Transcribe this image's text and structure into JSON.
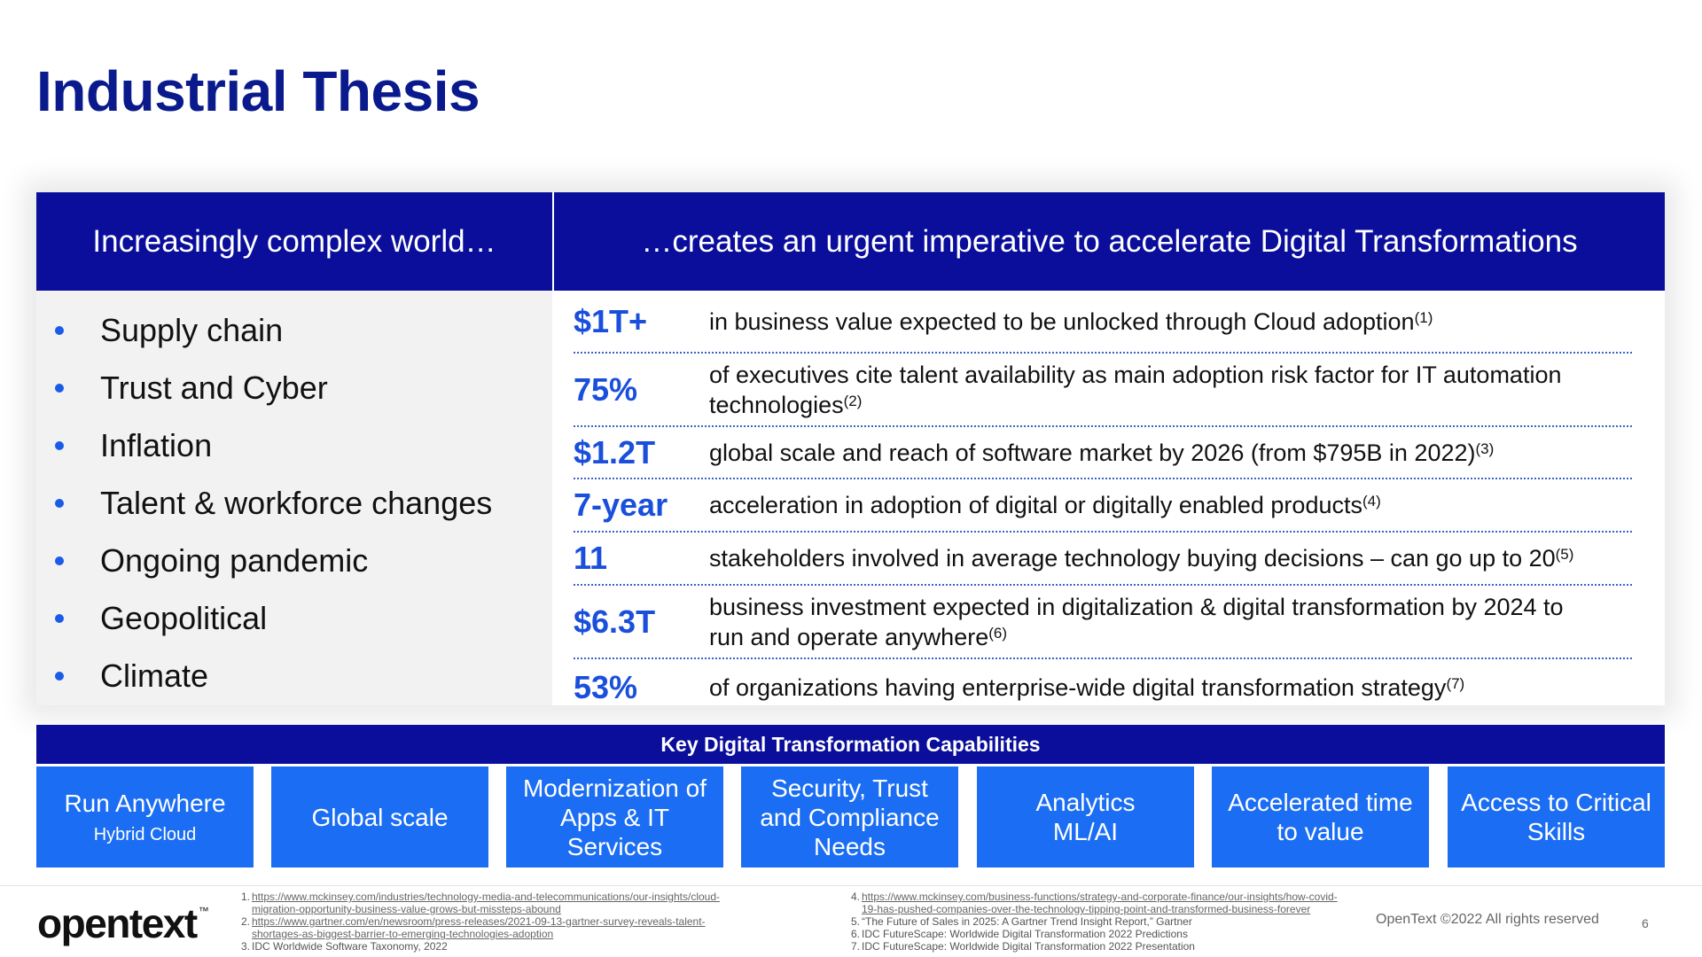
{
  "title": "Industrial Thesis",
  "left_header": "Increasingly complex world…",
  "right_header": "…creates an urgent imperative to accelerate Digital Transformations",
  "challenges": [
    "Supply chain",
    "Trust and Cyber",
    "Inflation",
    "Talent & workforce changes",
    "Ongoing pandemic",
    "Geopolitical",
    "Climate"
  ],
  "stats": [
    {
      "value": "$1T+",
      "lines": [
        "in business value expected to be unlocked through Cloud adoption"
      ],
      "ref": "(1)"
    },
    {
      "value": "75%",
      "lines": [
        "of executives cite talent availability as main adoption risk factor for IT automation",
        "technologies"
      ],
      "ref": "(2)"
    },
    {
      "value": "$1.2T",
      "lines": [
        "global scale and reach of software market by 2026 (from $795B in 2022)"
      ],
      "ref": "(3)"
    },
    {
      "value": "7-year",
      "lines": [
        "acceleration in adoption of digital or digitally enabled products"
      ],
      "ref": "(4)"
    },
    {
      "value": "11",
      "lines": [
        "stakeholders involved in average technology buying decisions – can go up to 20"
      ],
      "ref": "(5)"
    },
    {
      "value": "$6.3T",
      "lines": [
        "business investment expected in digitalization & digital transformation by 2024 to",
        "run and operate anywhere"
      ],
      "ref": "(6)"
    },
    {
      "value": "53%",
      "lines": [
        "of organizations having enterprise-wide digital transformation strategy"
      ],
      "ref": "(7)"
    }
  ],
  "capabilities_title": "Key Digital Transformation Capabilities",
  "capabilities": [
    {
      "lines": [
        "Run Anywhere"
      ],
      "sub": "Hybrid Cloud"
    },
    {
      "lines": [
        "Global scale"
      ],
      "sub": ""
    },
    {
      "lines": [
        "Modernization of",
        "Apps & IT",
        "Services"
      ],
      "sub": ""
    },
    {
      "lines": [
        "Security, Trust",
        "and Compliance",
        "Needs"
      ],
      "sub": ""
    },
    {
      "lines": [
        "Analytics",
        "ML/AI"
      ],
      "sub": ""
    },
    {
      "lines": [
        "Accelerated time",
        "to value"
      ],
      "sub": ""
    },
    {
      "lines": [
        "Access to Critical",
        "Skills"
      ],
      "sub": ""
    }
  ],
  "footnotes_left": [
    {
      "num": "1.",
      "lines": [
        "https://www.mckinsey.com/industries/technology-media-and-telecommunications/our-insights/cloud-",
        "migration-opportunity-business-value-grows-but-missteps-abound"
      ],
      "link": true
    },
    {
      "num": "2.",
      "lines": [
        "https://www.gartner.com/en/newsroom/press-releases/2021-09-13-gartner-survey-reveals-talent-",
        "shortages-as-biggest-barrier-to-emerging-technologies-adoption"
      ],
      "link": true
    },
    {
      "num": "3.",
      "lines": [
        "IDC Worldwide Software Taxonomy, 2022"
      ],
      "link": false
    }
  ],
  "footnotes_right": [
    {
      "num": "4.",
      "lines": [
        "https://www.mckinsey.com/business-functions/strategy-and-corporate-finance/our-insights/how-covid-",
        "19-has-pushed-companies-over-the-technology-tipping-point-and-transformed-business-forever"
      ],
      "link": true
    },
    {
      "num": "5.",
      "lines": [
        "“The Future of Sales in 2025: A Gartner Trend Insight Report,” Gartner"
      ],
      "link": false
    },
    {
      "num": "6.",
      "lines": [
        "IDC FutureScape: Worldwide Digital Transformation 2022 Predictions"
      ],
      "link": false
    },
    {
      "num": "7.",
      "lines": [
        "IDC FutureScape: Worldwide Digital Transformation 2022 Presentation"
      ],
      "link": false
    }
  ],
  "logo_text": "opentext",
  "logo_tm": "™",
  "copyright": "OpenText ©2022 All rights reserved",
  "page_number": "6",
  "colors": {
    "navy": "#0a0e9b",
    "accent_blue": "#1a4fdc",
    "tile_blue": "#1b6ef3"
  }
}
